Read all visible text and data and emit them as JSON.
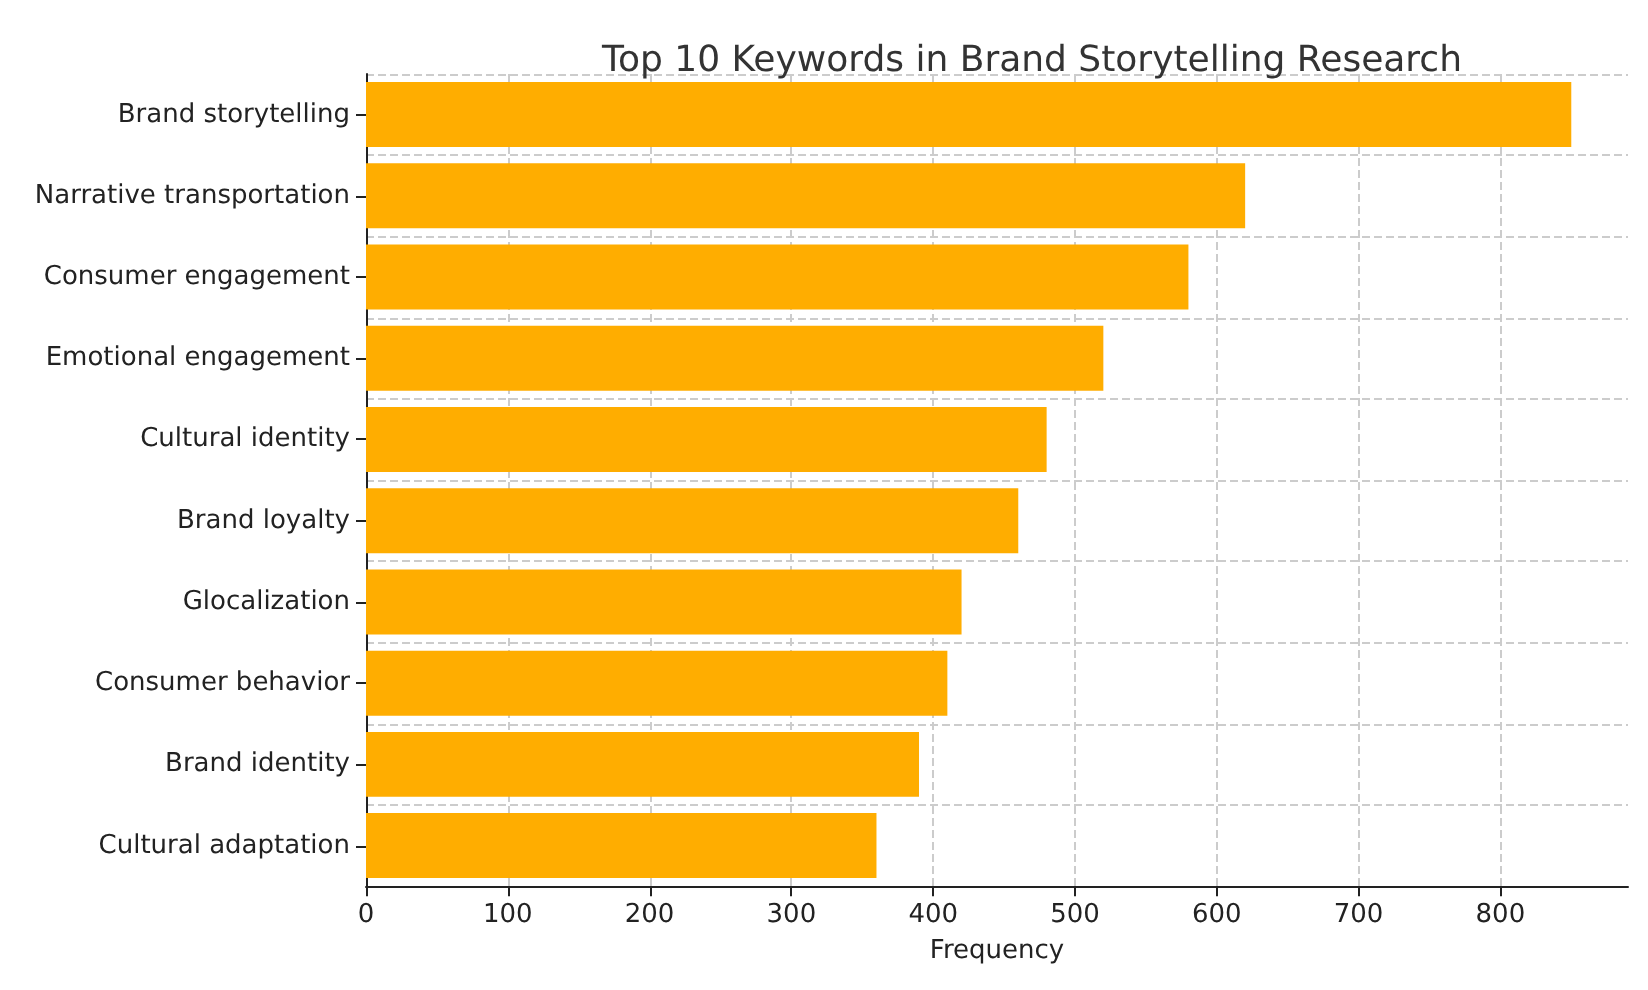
{
  "chart_data": {
    "type": "bar",
    "orientation": "horizontal",
    "title": "Top 10 Keywords in Brand Storytelling Research",
    "xlabel": "Frequency",
    "categories": [
      "Brand storytelling",
      "Narrative transportation",
      "Consumer engagement",
      "Emotional engagement",
      "Cultural identity",
      "Brand loyalty",
      "Glocalization",
      "Consumer behavior",
      "Brand identity",
      "Cultural adaptation"
    ],
    "values": [
      850,
      620,
      580,
      520,
      480,
      460,
      420,
      410,
      390,
      360
    ],
    "color": "#ffad00",
    "xlim": [
      0,
      890
    ],
    "xticks": [
      0,
      100,
      200,
      300,
      400,
      500,
      600,
      700,
      800
    ],
    "grid": true
  }
}
